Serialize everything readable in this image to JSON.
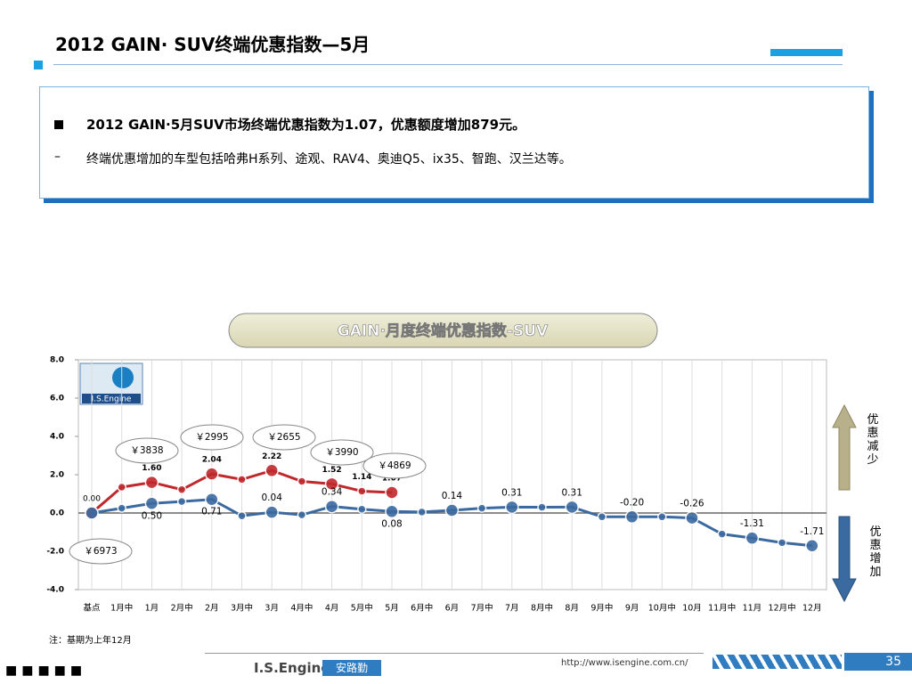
{
  "header": {
    "title": "2012 GAIN· SUV终端优惠指数—5月"
  },
  "bullets": {
    "main": "2012 GAIN·5月SUV市场终端优惠指数为1.07，优惠额度增加879元。",
    "sub": "终端优惠增加的车型包括哈弗H系列、途观、RAV4、奥迪Q5、ix35、智跑、汉兰达等。"
  },
  "chart_data": {
    "type": "line",
    "title": "GAIN·月度终端优惠指数-SUV",
    "logo": "I.S.Engine",
    "categories": [
      "基点",
      "1月中",
      "1月",
      "2月中",
      "2月",
      "3月中",
      "3月",
      "4月中",
      "4月",
      "5月中",
      "5月",
      "6月中",
      "6月",
      "7月中",
      "7月",
      "8月中",
      "8月",
      "9月中",
      "9月",
      "10月中",
      "10月",
      "11月中",
      "11月",
      "12月中",
      "12月"
    ],
    "series": [
      {
        "color": "#c0282c",
        "values": [
          0.0,
          1.35,
          1.6,
          1.22,
          2.04,
          1.75,
          2.22,
          1.65,
          1.52,
          1.14,
          1.07,
          null,
          null,
          null,
          null,
          null,
          null,
          null,
          null,
          null,
          null,
          null,
          null,
          null,
          null
        ],
        "value_labels": [
          "0.00",
          null,
          "1.60",
          null,
          "2.04",
          null,
          "2.22",
          null,
          "1.52",
          "1.14",
          "1.07",
          null,
          null,
          null,
          null,
          null,
          null,
          null,
          null,
          null,
          null,
          null,
          null,
          null,
          null
        ]
      },
      {
        "color": "#3b6aa0",
        "values": [
          0.0,
          0.25,
          0.5,
          0.6,
          0.71,
          -0.15,
          0.04,
          -0.1,
          0.34,
          0.2,
          0.08,
          0.05,
          0.14,
          0.25,
          0.31,
          0.3,
          0.31,
          -0.2,
          -0.2,
          -0.2,
          -0.26,
          -1.1,
          -1.31,
          -1.55,
          -1.71
        ],
        "value_labels": [
          null,
          null,
          "0.50",
          null,
          "0.71",
          null,
          "0.04",
          null,
          "0.34",
          null,
          "0.08",
          null,
          "0.14",
          null,
          "0.31",
          null,
          "0.31",
          null,
          "-0.20",
          null,
          "-0.26",
          null,
          "-1.31",
          null,
          "-1.71"
        ]
      }
    ],
    "ylim": [
      -4,
      8
    ],
    "yticks": [
      {
        "value": -4,
        "label": "-4.0"
      },
      {
        "value": -2,
        "label": "-2.0"
      },
      {
        "value": 0,
        "label": "0.0"
      },
      {
        "value": 2,
        "label": "2.0"
      },
      {
        "value": 4,
        "label": "4.0"
      },
      {
        "value": 6,
        "label": "6.0"
      },
      {
        "value": 8,
        "label": "8.0"
      }
    ],
    "grid": true,
    "annotations": [
      "￥6973",
      "￥3838",
      "￥2995",
      "￥2655",
      "￥3990",
      "￥4869"
    ],
    "up_label": "优惠减少",
    "down_label": "优惠增加",
    "note": "注：基期为上年12月"
  },
  "footer": {
    "brand": "I.S.Engine",
    "brand_cn": "安路勤",
    "url": "http://www.isengine.com.cn/",
    "page": "35"
  }
}
